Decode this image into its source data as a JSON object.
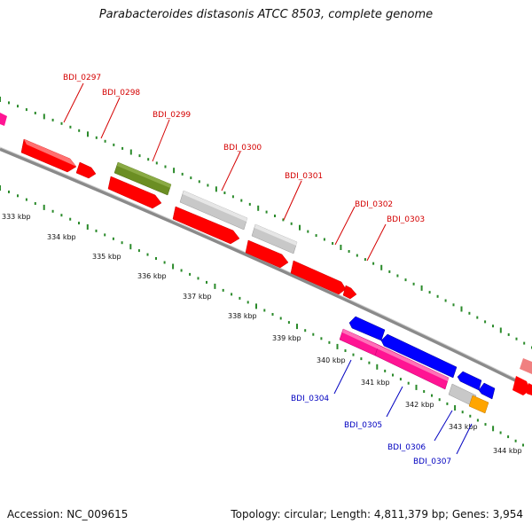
{
  "title": "Parabacteroides distasonis ATCC 8503, complete genome",
  "footer": {
    "accession": "Accession: NC_009615",
    "topology": "Topology: circular; Length: 4,811,379 bp; Genes: 3,954"
  },
  "colors": {
    "forward_label": "#d40000",
    "reverse_label": "#0000c0",
    "red": "#ff0000",
    "gray": "#c8c8c8",
    "olive": "#6b8e23",
    "blue": "#0000ff",
    "magenta": "#ff1493",
    "orange": "#ffa500",
    "pink": "#f08080",
    "backbone": "#888888",
    "tick": "#2a8a2a"
  },
  "kbp_labels": [
    "333 kbp",
    "334 kbp",
    "335 kbp",
    "336 kbp",
    "337 kbp",
    "338 kbp",
    "339 kbp",
    "340 kbp",
    "341 kbp",
    "342 kbp",
    "343 kbp",
    "344 kbp"
  ],
  "forward_labels": [
    "BDI_0297",
    "BDI_0298",
    "BDI_0299",
    "BDI_0300",
    "BDI_0301",
    "BDI_0302",
    "BDI_0303"
  ],
  "reverse_labels": [
    "BDI_0304",
    "BDI_0305",
    "BDI_0306",
    "BDI_0307"
  ]
}
